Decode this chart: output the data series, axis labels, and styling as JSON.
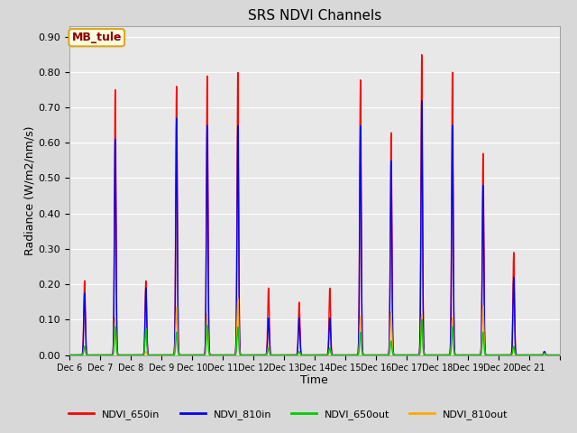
{
  "title": "SRS NDVI Channels",
  "xlabel": "Time",
  "ylabel": "Radiance (W/m2/nm/s)",
  "annotation": "MB_tule",
  "ylim": [
    0.0,
    0.93
  ],
  "yticks": [
    0.0,
    0.1,
    0.2,
    0.3,
    0.4,
    0.5,
    0.6,
    0.7,
    0.8,
    0.9
  ],
  "xtick_labels": [
    "Dec 6",
    "Dec 7",
    "Dec 8",
    "Dec 9",
    "Dec 10",
    "Dec 11",
    "Dec 12",
    "Dec 13",
    "Dec 14",
    "Dec 15",
    "Dec 16",
    "Dec 17",
    "Dec 18",
    "Dec 19",
    "Dec 20",
    "Dec 21"
  ],
  "figure_bg": "#d8d8d8",
  "plot_bg": "#e8e8e8",
  "grid_color": "#ffffff",
  "series": [
    {
      "label": "NDVI_650in",
      "color": "#ff0000",
      "lw": 1.0
    },
    {
      "label": "NDVI_810in",
      "color": "#0000ff",
      "lw": 1.0
    },
    {
      "label": "NDVI_650out",
      "color": "#00cc00",
      "lw": 1.0
    },
    {
      "label": "NDVI_810out",
      "color": "#ffaa00",
      "lw": 1.0
    }
  ],
  "day_peaks": {
    "Dec 6": {
      "NDVI_650in": 0.21,
      "NDVI_810in": 0.175,
      "NDVI_650out": 0.025,
      "NDVI_810out": 0.02
    },
    "Dec 7": {
      "NDVI_650in": 0.75,
      "NDVI_810in": 0.61,
      "NDVI_650out": 0.08,
      "NDVI_810out": 0.105
    },
    "Dec 8": {
      "NDVI_650in": 0.21,
      "NDVI_810in": 0.19,
      "NDVI_650out": 0.075,
      "NDVI_810out": 0.01
    },
    "Dec 9": {
      "NDVI_650in": 0.76,
      "NDVI_810in": 0.67,
      "NDVI_650out": 0.065,
      "NDVI_810out": 0.135
    },
    "Dec 10": {
      "NDVI_650in": 0.79,
      "NDVI_810in": 0.65,
      "NDVI_650out": 0.085,
      "NDVI_810out": 0.115
    },
    "Dec 11": {
      "NDVI_650in": 0.8,
      "NDVI_810in": 0.65,
      "NDVI_650out": 0.08,
      "NDVI_810out": 0.16
    },
    "Dec 12": {
      "NDVI_650in": 0.19,
      "NDVI_810in": 0.105,
      "NDVI_650out": 0.02,
      "NDVI_810out": 0.025
    },
    "Dec 13": {
      "NDVI_650in": 0.15,
      "NDVI_810in": 0.105,
      "NDVI_650out": 0.01,
      "NDVI_810out": 0.01
    },
    "Dec 14": {
      "NDVI_650in": 0.19,
      "NDVI_810in": 0.105,
      "NDVI_650out": 0.02,
      "NDVI_810out": 0.02
    },
    "Dec 15": {
      "NDVI_650in": 0.78,
      "NDVI_810in": 0.65,
      "NDVI_650out": 0.065,
      "NDVI_810out": 0.11
    },
    "Dec 16": {
      "NDVI_650in": 0.63,
      "NDVI_810in": 0.55,
      "NDVI_650out": 0.04,
      "NDVI_810out": 0.12
    },
    "Dec 17": {
      "NDVI_650in": 0.85,
      "NDVI_810in": 0.72,
      "NDVI_650out": 0.1,
      "NDVI_810out": 0.115
    },
    "Dec 18": {
      "NDVI_650in": 0.8,
      "NDVI_810in": 0.65,
      "NDVI_650out": 0.08,
      "NDVI_810out": 0.105
    },
    "Dec 19": {
      "NDVI_650in": 0.57,
      "NDVI_810in": 0.48,
      "NDVI_650out": 0.065,
      "NDVI_810out": 0.14
    },
    "Dec 20": {
      "NDVI_650in": 0.29,
      "NDVI_810in": 0.22,
      "NDVI_650out": 0.025,
      "NDVI_810out": 0.02
    },
    "Dec 21": {
      "NDVI_650in": 0.01,
      "NDVI_810in": 0.01,
      "NDVI_650out": 0.005,
      "NDVI_810out": 0.005
    }
  },
  "sigma": 0.025
}
